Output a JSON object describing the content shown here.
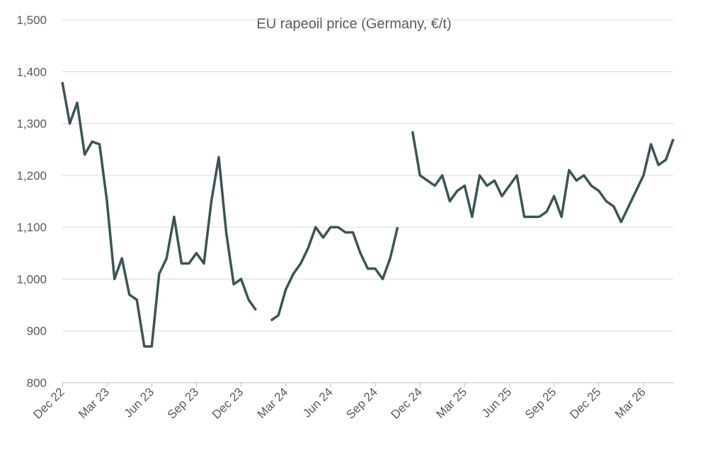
{
  "chart_data": {
    "type": "line",
    "title": "EU rapeoil price (Germany, €/t)",
    "categories": [
      "Dec 22",
      null,
      null,
      null,
      null,
      null,
      "Mar 23",
      null,
      null,
      null,
      null,
      null,
      "Jun 23",
      null,
      null,
      null,
      null,
      null,
      "Sep 23",
      null,
      null,
      null,
      null,
      null,
      "Dec 23",
      null,
      null,
      null,
      null,
      null,
      "Mar 24",
      null,
      null,
      null,
      null,
      null,
      "Jun 24",
      null,
      null,
      null,
      null,
      null,
      "Sep 24",
      null,
      null,
      null,
      null,
      null,
      "Dec 24",
      null,
      null,
      null,
      null,
      null,
      "Mar 25",
      null,
      null,
      null,
      null,
      null,
      "Jun 25",
      null,
      null,
      null,
      null,
      null,
      "Sep 25",
      null,
      null,
      null,
      null,
      null,
      "Dec 25",
      null,
      null,
      null,
      null,
      null,
      "Mar 26",
      null,
      null,
      null,
      null
    ],
    "series": [
      {
        "name": "EU rapeoil price",
        "color": "#3b5455",
        "values": [
          1380,
          1300,
          1340,
          1240,
          1265,
          1260,
          1150,
          1000,
          1040,
          970,
          960,
          870,
          870,
          1010,
          1040,
          1120,
          1030,
          1030,
          1050,
          1030,
          1150,
          1235,
          1090,
          990,
          1000,
          960,
          940,
          null,
          920,
          930,
          980,
          1010,
          1030,
          1060,
          1100,
          1080,
          1100,
          1100,
          1090,
          1090,
          1050,
          1020,
          1020,
          1000,
          1040,
          1100,
          null,
          1285,
          1200,
          1190,
          1180,
          1200,
          1150,
          1170,
          1180,
          1120,
          1200,
          1180,
          1190,
          1160,
          1180,
          1200,
          1120,
          1120,
          1120,
          1130,
          1160,
          1120,
          1210,
          1190,
          1200,
          1180,
          1170,
          1150,
          1140,
          1110,
          1140,
          1170,
          1200,
          1260,
          1220,
          1230,
          1270
        ]
      }
    ],
    "ylim": [
      800,
      1500
    ],
    "yticks": [
      800,
      900,
      {
        "value": 1000,
        "label": "1,000"
      },
      {
        "value": 1100,
        "label": "1,100"
      },
      {
        "value": 1200,
        "label": "1,200"
      },
      {
        "value": 1300,
        "label": "1,300"
      },
      {
        "value": 1400,
        "label": "1,400"
      },
      {
        "value": 1500,
        "label": "1,500"
      }
    ],
    "grid": true
  }
}
